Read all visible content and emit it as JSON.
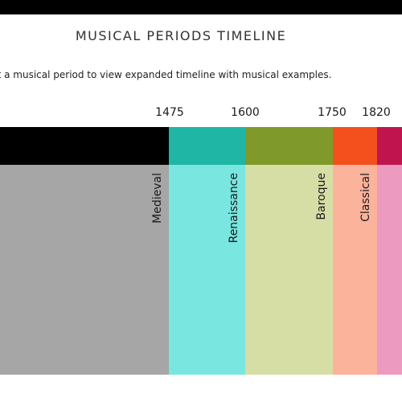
{
  "page": {
    "title": "MUSICAL PERIODS TIMELINE",
    "instruction": "ct a musical period to view expanded timeline with musical examples."
  },
  "years": [
    "1475",
    "1600",
    "1750",
    "1820"
  ],
  "periods": [
    {
      "label": "Medieval",
      "header_color": "#000000",
      "body_color": "#a6a6a6"
    },
    {
      "label": "Renaissance",
      "header_color": "#1fb6a6",
      "body_color": "#79e6df"
    },
    {
      "label": "Baroque",
      "header_color": "#7f9a2a",
      "body_color": "#d6dea6"
    },
    {
      "label": "Classical",
      "header_color": "#f4501e",
      "body_color": "#fbb39c"
    },
    {
      "label": "",
      "header_color": "#c0144e",
      "body_color": "#ec9ac0"
    }
  ]
}
